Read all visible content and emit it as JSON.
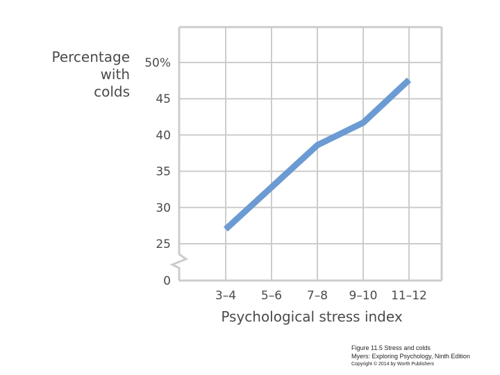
{
  "chart_data": {
    "type": "line",
    "title": "",
    "ylabel": [
      "Percentage",
      "with",
      "colds"
    ],
    "xlabel": "Psychological stress index",
    "categories": [
      "3–4",
      "5–6",
      "7–8",
      "9–10",
      "11–12"
    ],
    "series": [
      {
        "values": [
          27,
          32.8,
          38.6,
          41.7,
          47.6
        ],
        "color": "#6b9bd2"
      }
    ],
    "yticks": [
      {
        "value": 25,
        "label": "25"
      },
      {
        "value": 30,
        "label": "30"
      },
      {
        "value": 35,
        "label": "35"
      },
      {
        "value": 40,
        "label": "40"
      },
      {
        "value": 45,
        "label": "45"
      },
      {
        "value": 50,
        "label": "50%"
      }
    ],
    "ylim": [
      25,
      50
    ],
    "y_axis_break": true,
    "y_origin_label": "0",
    "grid": true,
    "grid_color": "#cccccc"
  },
  "caption": {
    "line1": "Figure 11.5 Stress and colds",
    "line2": "Myers: Exploring Psychology, Ninth Edition",
    "line3": "Copyright © 2014 by Worth Publishers"
  }
}
